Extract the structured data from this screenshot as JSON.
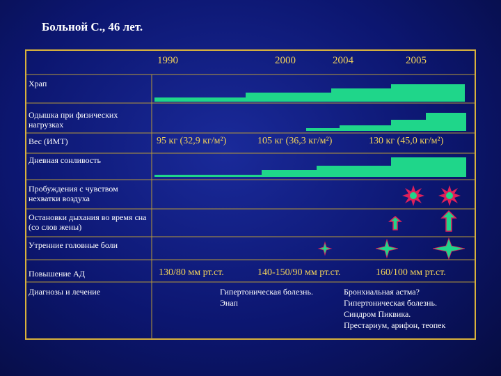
{
  "title": "Больной С., 46 лет.",
  "years": [
    "1990",
    "2000",
    "2004",
    "2005"
  ],
  "rows": [
    "Храп",
    "Одышка при физических нагрузках",
    "Вес (ИМТ)",
    "Дневная сонливость",
    "Пробуждения с чувством нехватки воздуха",
    "Остановки дыхания во время сна (со слов жены)",
    "Утренние головные боли",
    "Повышение АД",
    "Диагнозы и лечение"
  ],
  "weight": [
    "95 кг (32,9 кг/м²)",
    "105 кг (36,3 кг/м²)",
    "130 кг (45,0 кг/м²)"
  ],
  "blood_pressure": [
    "130/80 мм рт.ст.",
    "140-150/90 мм рт.ст.",
    "160/100 мм рт.ст."
  ],
  "diagnoses": [
    [
      "Гипертоническая болезнь.",
      "Энап"
    ],
    [
      "Бронхиальная астма?",
      "Гипертоническая болезнь.",
      "Синдром Пиквика.",
      "Престариум, арифон, теопек"
    ]
  ]
}
